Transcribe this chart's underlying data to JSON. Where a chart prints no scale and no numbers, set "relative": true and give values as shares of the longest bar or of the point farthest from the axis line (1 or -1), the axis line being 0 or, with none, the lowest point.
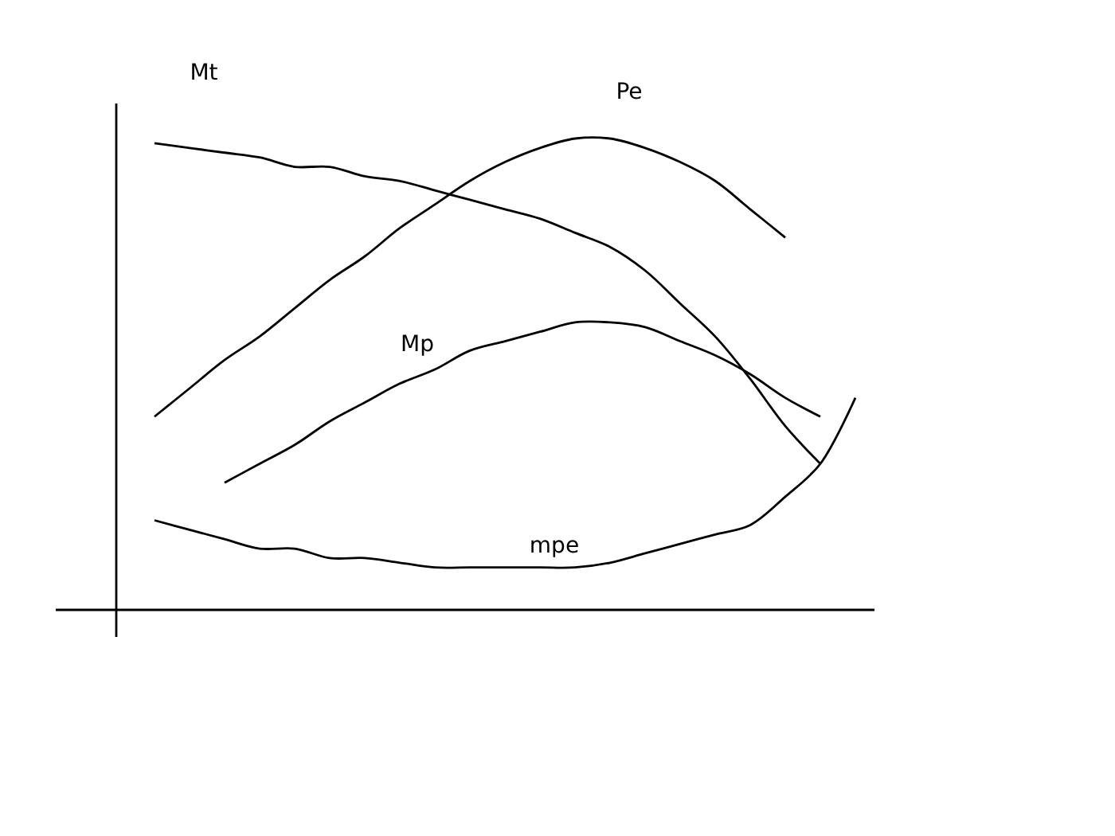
{
  "chart_data": {
    "type": "line",
    "relative": true,
    "marker": "none",
    "line_style": "solid",
    "categories": [
      null,
      null,
      null,
      null,
      null,
      null,
      null,
      null,
      null,
      null,
      null,
      null,
      null,
      null,
      null,
      null,
      null,
      null,
      null,
      null,
      null
    ],
    "series": [
      {
        "name": "Mt",
        "color": "#000000",
        "values": [
          0.99,
          0.98,
          0.97,
          0.96,
          0.94,
          0.94,
          0.92,
          0.91,
          0.89,
          0.87,
          0.85,
          0.83,
          0.8,
          0.77,
          0.72,
          0.65,
          0.58,
          0.49,
          0.39,
          0.31,
          null
        ]
      },
      {
        "name": "Pe",
        "color": "#000000",
        "values": [
          0.41,
          0.47,
          0.53,
          0.58,
          0.64,
          0.7,
          0.75,
          0.81,
          0.86,
          0.91,
          0.95,
          0.98,
          1.0,
          1.0,
          0.98,
          0.95,
          0.91,
          0.85,
          0.79,
          null,
          null
        ]
      },
      {
        "name": "Mp",
        "color": "#000000",
        "values": [
          null,
          null,
          0.27,
          0.31,
          0.35,
          0.4,
          0.44,
          0.48,
          0.51,
          0.55,
          0.57,
          0.59,
          0.61,
          0.61,
          0.6,
          0.57,
          0.54,
          0.5,
          0.45,
          0.41,
          null
        ]
      },
      {
        "name": "mpe",
        "color": "#000000",
        "values": [
          0.19,
          0.17,
          0.15,
          0.13,
          0.13,
          0.11,
          0.11,
          0.1,
          0.09,
          0.09,
          0.09,
          0.09,
          0.09,
          0.1,
          0.12,
          0.14,
          0.16,
          0.18,
          0.24,
          0.31,
          0.45
        ]
      }
    ]
  }
}
